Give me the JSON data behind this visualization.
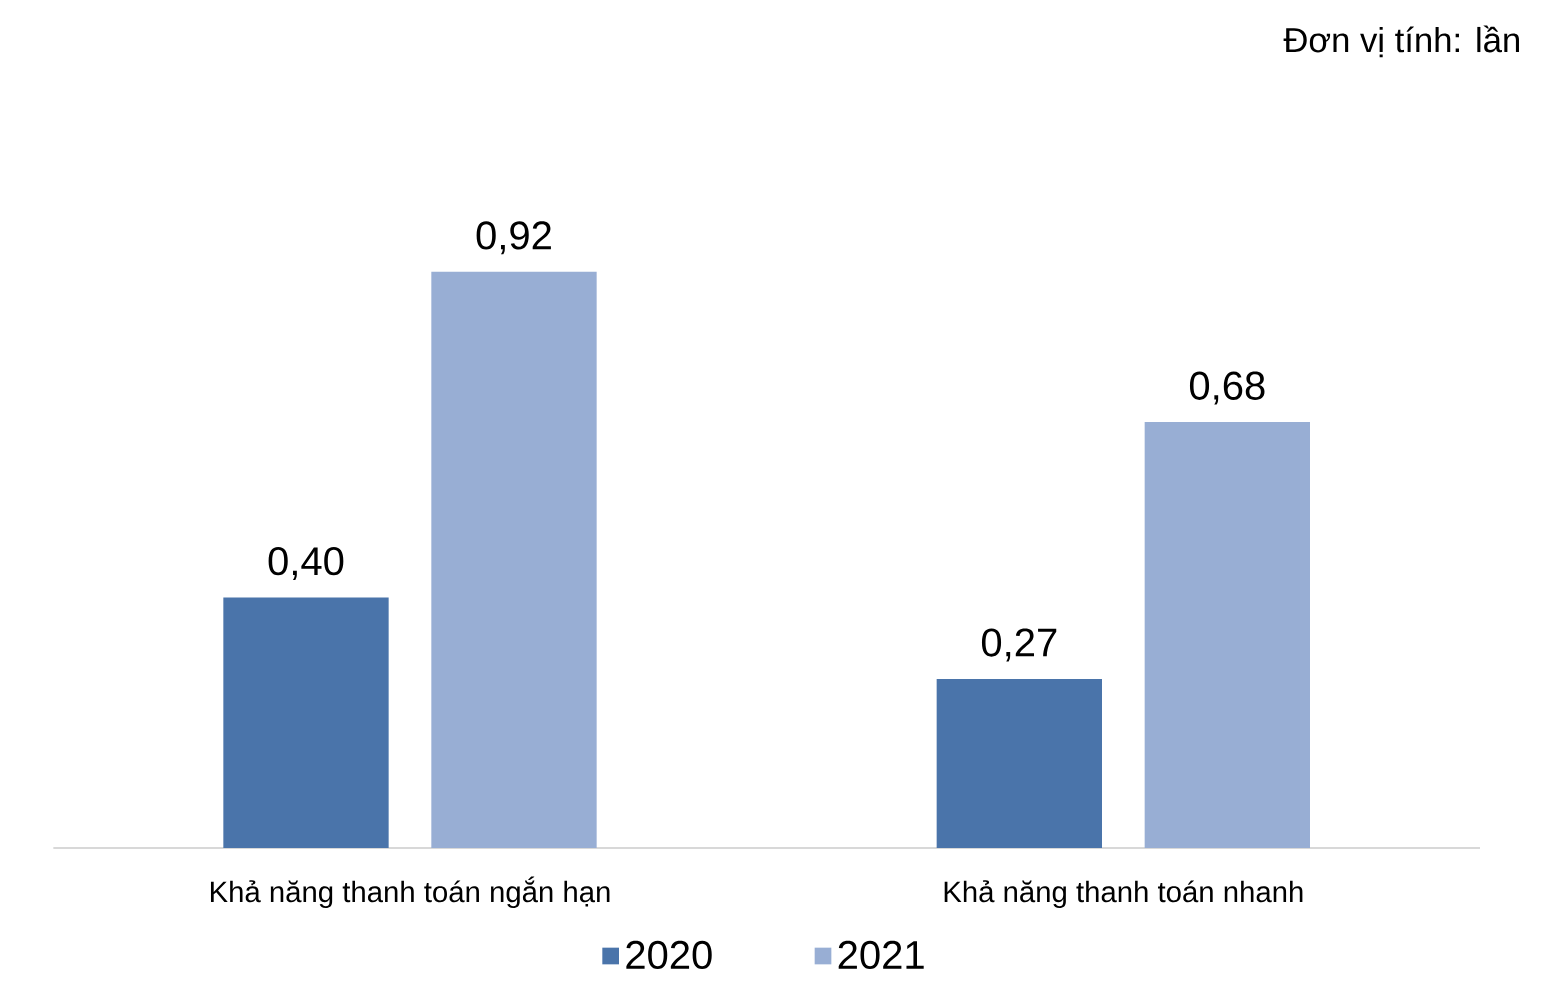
{
  "chart_data": {
    "type": "bar",
    "categories": [
      "Khả năng thanh toán ngắn hạn",
      "Khả năng thanh toán nhanh"
    ],
    "series": [
      {
        "name": "2020",
        "color": "#4a74aa",
        "values": [
          0.4,
          0.27
        ],
        "value_labels": [
          "0,40",
          "0,27"
        ]
      },
      {
        "name": "2021",
        "color": "#98aed4",
        "values": [
          0.92,
          0.68
        ],
        "value_labels": [
          "0,92",
          "0,68"
        ]
      }
    ],
    "legend": "bottom",
    "annotations": [
      "Đơn vị tính: lần"
    ]
  }
}
